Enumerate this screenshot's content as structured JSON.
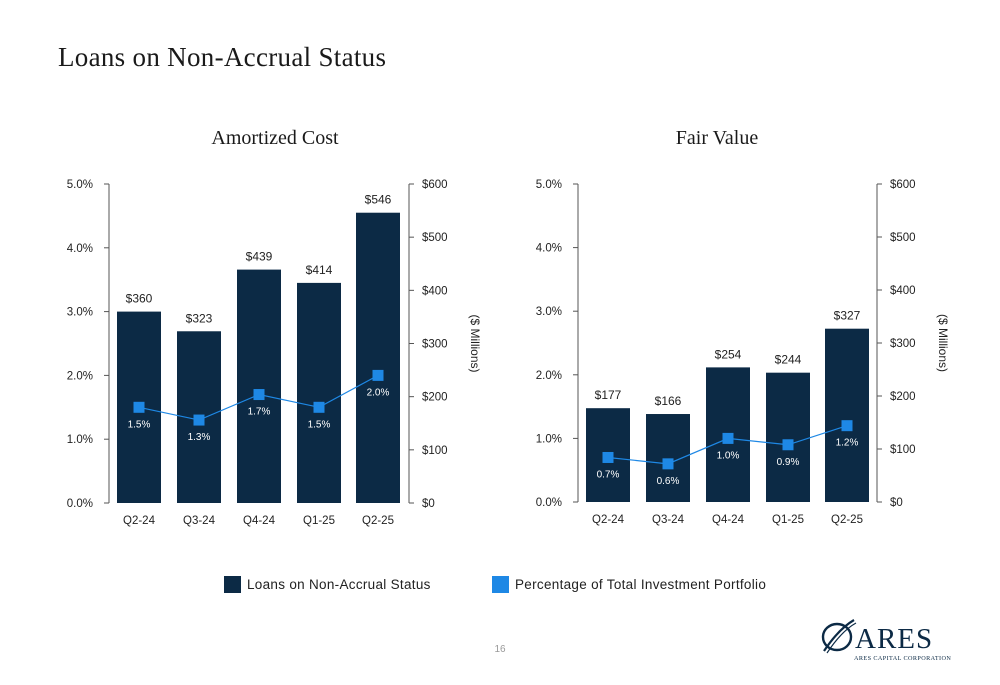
{
  "page": {
    "title": "Loans on Non-Accrual Status",
    "page_number": "16"
  },
  "legend": {
    "items": [
      {
        "label": "Loans on Non-Accrual Status",
        "color": "#0c2a45"
      },
      {
        "label": "Percentage of Total Investment Portfolio",
        "color": "#1e88e5"
      }
    ]
  },
  "logo": {
    "wordmark": "ARES",
    "subtitle": "ARES CAPITAL CORPORATION"
  },
  "chart_data": [
    {
      "type": "bar",
      "title": "Amortized Cost",
      "categories": [
        "Q2-24",
        "Q3-24",
        "Q4-24",
        "Q1-25",
        "Q2-25"
      ],
      "series": [
        {
          "name": "Loans on Non-Accrual Status",
          "type": "bar",
          "axis": "right",
          "values": [
            360,
            323,
            439,
            414,
            546
          ],
          "labels": [
            "$360",
            "$323",
            "$439",
            "$414",
            "$546"
          ]
        },
        {
          "name": "Percentage of Total Investment Portfolio",
          "type": "line",
          "axis": "left",
          "values": [
            1.5,
            1.3,
            1.7,
            1.5,
            2.0
          ],
          "labels": [
            "1.5%",
            "1.3%",
            "1.7%",
            "1.5%",
            "2.0%"
          ]
        }
      ],
      "ylabel_right": "($ Millions)",
      "left_axis": {
        "ticks": [
          "0.0%",
          "1.0%",
          "2.0%",
          "3.0%",
          "4.0%",
          "5.0%"
        ],
        "ylim": [
          0,
          5
        ]
      },
      "right_axis": {
        "ticks": [
          "$0",
          "$100",
          "$200",
          "$300",
          "$400",
          "$500",
          "$600"
        ],
        "ylim": [
          0,
          600
        ]
      },
      "grid": false
    },
    {
      "type": "bar",
      "title": "Fair Value",
      "categories": [
        "Q2-24",
        "Q3-24",
        "Q4-24",
        "Q1-25",
        "Q2-25"
      ],
      "series": [
        {
          "name": "Loans on Non-Accrual Status",
          "type": "bar",
          "axis": "right",
          "values": [
            177,
            166,
            254,
            244,
            327
          ],
          "labels": [
            "$177",
            "$166",
            "$254",
            "$244",
            "$327"
          ]
        },
        {
          "name": "Percentage of Total Investment Portfolio",
          "type": "line",
          "axis": "left",
          "values": [
            0.7,
            0.6,
            1.0,
            0.9,
            1.2
          ],
          "labels": [
            "0.7%",
            "0.6%",
            "1.0%",
            "0.9%",
            "1.2%"
          ]
        }
      ],
      "ylabel_right": "($ Millions)",
      "left_axis": {
        "ticks": [
          "0.0%",
          "1.0%",
          "2.0%",
          "3.0%",
          "4.0%",
          "5.0%"
        ],
        "ylim": [
          0,
          5
        ]
      },
      "right_axis": {
        "ticks": [
          "$0",
          "$100",
          "$200",
          "$300",
          "$400",
          "$500",
          "$600"
        ],
        "ylim": [
          0,
          600
        ]
      },
      "grid": false
    }
  ]
}
